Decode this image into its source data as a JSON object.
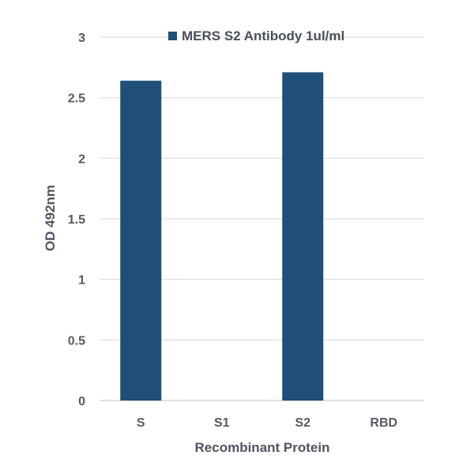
{
  "chart_data": {
    "type": "bar",
    "title": "",
    "xlabel": "Recombinant Protein",
    "ylabel": "OD 492nm",
    "categories": [
      "S",
      "S1",
      "S2",
      "RBD"
    ],
    "series": [
      {
        "name": "MERS S2 Antibody 1ul/ml",
        "color": "#1f4e79",
        "values": [
          2.64,
          0,
          2.71,
          0
        ]
      }
    ],
    "ylim": [
      0,
      3
    ],
    "yticks": [
      0,
      0.5,
      1,
      1.5,
      2,
      2.5,
      3
    ],
    "ytick_labels": [
      "0",
      "0.5",
      "1",
      "1.5",
      "2",
      "2.5",
      "3"
    ],
    "grid": true,
    "legend_position": "top"
  }
}
